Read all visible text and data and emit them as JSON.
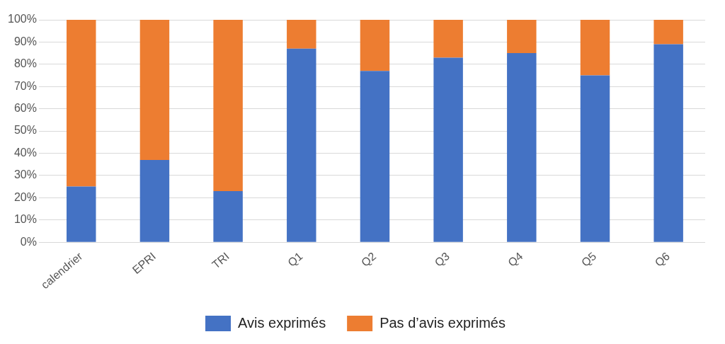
{
  "chart_data": {
    "type": "bar",
    "stacked": true,
    "categories": [
      "calendrier",
      "EPRI",
      "TRI",
      "Q1",
      "Q2",
      "Q3",
      "Q4",
      "Q5",
      "Q6"
    ],
    "series": [
      {
        "name": "Avis exprimés",
        "color": "#4472c4",
        "values": [
          25,
          37,
          23,
          87,
          77,
          83,
          85,
          75,
          89
        ]
      },
      {
        "name": "Pas d’avis exprimés",
        "color": "#ed7d31",
        "values": [
          75,
          63,
          77,
          13,
          23,
          17,
          15,
          25,
          11
        ]
      }
    ],
    "ylim": [
      0,
      100
    ],
    "yticks": [
      {
        "value": 0,
        "label": "0%"
      },
      {
        "value": 10,
        "label": "10%"
      },
      {
        "value": 20,
        "label": "20%"
      },
      {
        "value": 30,
        "label": "30%"
      },
      {
        "value": 40,
        "label": "40%"
      },
      {
        "value": 50,
        "label": "50%"
      },
      {
        "value": 60,
        "label": "60%"
      },
      {
        "value": 70,
        "label": "70%"
      },
      {
        "value": 80,
        "label": "80%"
      },
      {
        "value": 90,
        "label": "90%"
      },
      {
        "value": 100,
        "label": "100%"
      }
    ],
    "grid": "y",
    "legend": "bottom"
  }
}
